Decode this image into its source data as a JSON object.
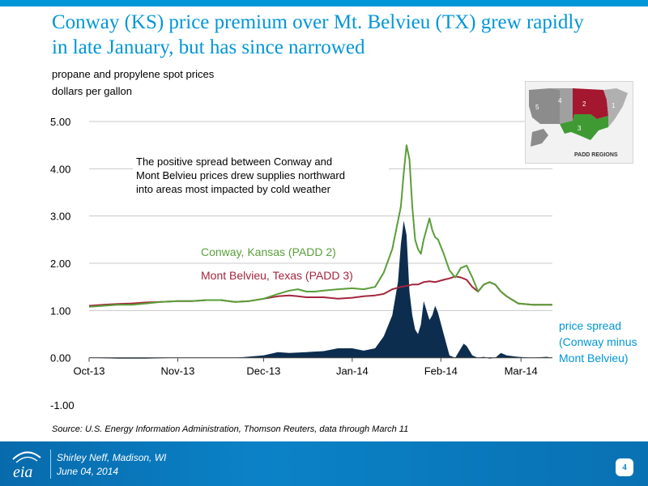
{
  "slide": {
    "title": "Conway (KS) price premium over Mt. Belvieu (TX) grew rapidly in late January, but has since narrowed",
    "subtitle": "propane and propylene spot prices",
    "units": "dollars per gallon",
    "source": "Source: U.S. Energy Information Administration, Thomson Reuters, data through March 11"
  },
  "footer": {
    "logo_text": "eia",
    "presenter": "Shirley Neff, Madison, WI",
    "date": "June 04, 2014",
    "page": "4",
    "accent_color": "#0b82c7"
  },
  "inset_map": {
    "title": "PADD REGIONS",
    "regions": [
      "1",
      "2",
      "3",
      "4",
      "5"
    ],
    "colors": {
      "padd2": "#a3182f",
      "padd3": "#3f9a34",
      "other": "#8c8c8c"
    }
  },
  "chart_data": {
    "type": "line",
    "title": "",
    "xlabel": "",
    "ylabel": "dollars per gallon",
    "ylim": [
      -1,
      5
    ],
    "yticks": [
      5,
      4,
      3,
      2,
      1,
      0,
      -1
    ],
    "ytick_labels": [
      "5.00",
      "4.00",
      "3.00",
      "2.00",
      "1.00",
      "0.00",
      "-1.00"
    ],
    "xlim": [
      0,
      162
    ],
    "xticks": [
      0,
      31,
      61,
      92,
      123,
      151
    ],
    "xtick_labels": [
      "Oct-13",
      "Nov-13",
      "Dec-13",
      "Jan-14",
      "Feb-14",
      "Mar-14"
    ],
    "grid": true,
    "annotation": "The positive spread between Conway and Mont Belvieu prices drew supplies northward into areas most impacted by cold weather",
    "series": [
      {
        "name": "Conway, Kansas (PADD 2)",
        "color": "#5a9e3a",
        "style": "line",
        "x": [
          0,
          5,
          10,
          15,
          20,
          25,
          31,
          36,
          41,
          46,
          51,
          56,
          61,
          66,
          70,
          73,
          76,
          79,
          82,
          87,
          92,
          96,
          100,
          103,
          106,
          109,
          110,
          111,
          112,
          113,
          114,
          115,
          116,
          117,
          119,
          120,
          121,
          122,
          124,
          126,
          128,
          130,
          132,
          134,
          136,
          138,
          140,
          142,
          144,
          146,
          150,
          155,
          160,
          162
        ],
        "values": [
          1.08,
          1.1,
          1.12,
          1.12,
          1.15,
          1.18,
          1.2,
          1.2,
          1.22,
          1.22,
          1.18,
          1.2,
          1.25,
          1.35,
          1.42,
          1.45,
          1.4,
          1.4,
          1.42,
          1.45,
          1.47,
          1.45,
          1.5,
          1.8,
          2.3,
          3.2,
          3.9,
          4.5,
          4.2,
          3.2,
          2.5,
          2.3,
          2.2,
          2.5,
          2.95,
          2.7,
          2.55,
          2.5,
          2.2,
          1.85,
          1.7,
          1.9,
          1.95,
          1.7,
          1.4,
          1.55,
          1.6,
          1.55,
          1.4,
          1.3,
          1.15,
          1.12,
          1.12,
          1.12
        ]
      },
      {
        "name": "Mont Belvieu, Texas  (PADD 3)",
        "color": "#a3263d",
        "style": "line",
        "x": [
          0,
          5,
          10,
          15,
          20,
          25,
          31,
          36,
          41,
          46,
          51,
          56,
          61,
          66,
          70,
          73,
          76,
          79,
          82,
          87,
          92,
          96,
          100,
          103,
          106,
          109,
          111,
          113,
          115,
          117,
          119,
          121,
          124,
          126,
          128,
          130,
          132,
          134,
          136,
          138,
          140,
          142,
          144,
          146,
          150,
          155,
          160,
          162
        ],
        "values": [
          1.1,
          1.12,
          1.14,
          1.15,
          1.17,
          1.18,
          1.2,
          1.2,
          1.22,
          1.22,
          1.18,
          1.2,
          1.25,
          1.3,
          1.32,
          1.3,
          1.28,
          1.28,
          1.28,
          1.25,
          1.27,
          1.3,
          1.32,
          1.35,
          1.45,
          1.5,
          1.52,
          1.55,
          1.55,
          1.6,
          1.62,
          1.6,
          1.65,
          1.68,
          1.72,
          1.7,
          1.65,
          1.5,
          1.4,
          1.55,
          1.6,
          1.55,
          1.4,
          1.3,
          1.15,
          1.12,
          1.12,
          1.12
        ]
      },
      {
        "name": "price spread (Conway minus Mont Belvieu)",
        "color": "#0d2d4f",
        "style": "area",
        "x": [
          0,
          10,
          20,
          31,
          41,
          51,
          61,
          66,
          70,
          76,
          82,
          87,
          92,
          96,
          100,
          103,
          106,
          108,
          109,
          110,
          111,
          112,
          113,
          114,
          115,
          116,
          117,
          118,
          119,
          120,
          121,
          122,
          124,
          126,
          128,
          130,
          131,
          132,
          134,
          136,
          138,
          140,
          142,
          144,
          146,
          150,
          155,
          160,
          162
        ],
        "values": [
          0,
          -0.02,
          -0.02,
          0,
          0,
          0,
          0.05,
          0.12,
          0.1,
          0.12,
          0.14,
          0.2,
          0.2,
          0.15,
          0.2,
          0.45,
          0.9,
          1.6,
          2.4,
          2.9,
          2.6,
          1.4,
          0.9,
          0.6,
          0.5,
          0.7,
          1.2,
          1.0,
          0.8,
          0.9,
          1.1,
          0.95,
          0.5,
          0.05,
          0.0,
          0.2,
          0.3,
          0.25,
          0.05,
          0.0,
          0.02,
          -0.02,
          0.0,
          0.1,
          0.05,
          0.02,
          0.0,
          0.02,
          0.0
        ]
      }
    ],
    "series_labels": [
      {
        "text": "Conway, Kansas (PADD 2)",
        "color": "#5a9e3a"
      },
      {
        "text": "Mont Belvieu, Texas  (PADD 3)",
        "color": "#a3263d"
      },
      {
        "text": "price spread",
        "color": "#0096d7"
      },
      {
        "text": "(Conway minus",
        "color": "#0096d7"
      },
      {
        "text": "Mont Belvieu)",
        "color": "#0096d7"
      }
    ]
  }
}
